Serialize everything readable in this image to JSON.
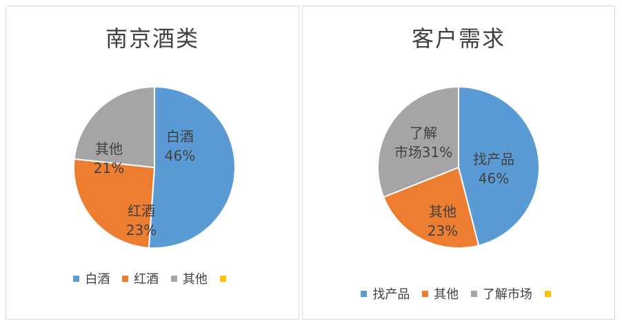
{
  "chart_data": [
    {
      "type": "pie",
      "title": "南京酒类",
      "colors": [
        "#5b9bd5",
        "#ed7d31",
        "#a5a5a5",
        "#ffc000"
      ],
      "slices": [
        {
          "label": "白酒",
          "value": 46,
          "pct_label": "46%"
        },
        {
          "label": "红酒",
          "value": 23,
          "pct_label": "23%"
        },
        {
          "label": "其他",
          "value": 21,
          "pct_label": "21%"
        },
        {
          "label": "",
          "value": 0,
          "pct_label": ""
        }
      ],
      "legend_position": "bottom"
    },
    {
      "type": "pie",
      "title": "客户需求",
      "colors": [
        "#5b9bd5",
        "#ed7d31",
        "#a5a5a5",
        "#ffc000"
      ],
      "slices": [
        {
          "label": "找产品",
          "value": 46,
          "pct_label": "46%"
        },
        {
          "label": "其他",
          "value": 23,
          "pct_label": "23%"
        },
        {
          "label": "了解市场",
          "value": 31,
          "pct_label": "31%"
        },
        {
          "label": "",
          "value": 0,
          "pct_label": ""
        }
      ],
      "legend_position": "bottom"
    }
  ]
}
